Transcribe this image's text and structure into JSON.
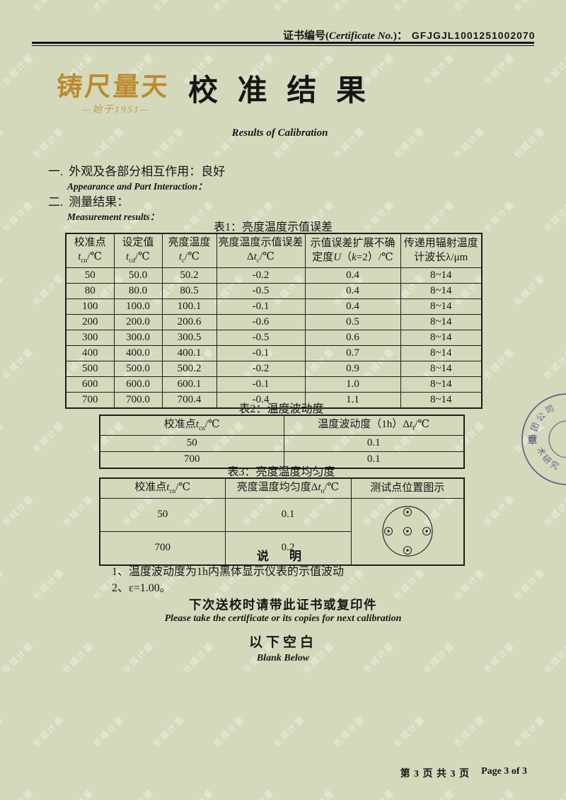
{
  "page": {
    "bg_color": "#d5d9bc",
    "watermark_text": "长城计量",
    "footer_zh": "第 3 页 共 3 页",
    "footer_en": "Page 3 of 3"
  },
  "header": {
    "cert_label_html": "证书编号(<i>Certificate No.</i>)：",
    "cert_number": "GFJGJL1001251002070",
    "logo_motto": "铸尺量天",
    "logo_since": "—始于1951—",
    "logo_color": "#bd8a2d",
    "title": "校 准 结 果",
    "subtitle": "Results of Calibration"
  },
  "sections": {
    "one_num": "一.",
    "one_zh": "外观及各部分相互作用：良好",
    "one_en": "Appearance and Part Interaction：",
    "two_num": "二.",
    "two_zh": "测量结果：",
    "two_en": "Measurement results："
  },
  "tables": {
    "table1": {
      "caption": "表1：亮度温度示值误差",
      "headers_html": [
        "校准点<br><i>t</i><sub>cn</sub>/℃",
        "设定值<br><i>t</i><sub>cd</sub>/℃",
        "亮度温度<br><i>t</i><sub>c</sub>/℃",
        "亮度温度示值误差<br>Δ<i>t</i><sub>c</sub>/℃",
        "示值误差扩展不确<br>定度<i>U</i>（<i>k</i>=2）/℃",
        "传递用辐射温度<br>计波长λ/μm"
      ],
      "rows": [
        [
          "50",
          "50.0",
          "50.2",
          "-0.2",
          "0.4",
          "8~14"
        ],
        [
          "80",
          "80.0",
          "80.5",
          "-0.5",
          "0.4",
          "8~14"
        ],
        [
          "100",
          "100.0",
          "100.1",
          "-0.1",
          "0.4",
          "8~14"
        ],
        [
          "200",
          "200.0",
          "200.6",
          "-0.6",
          "0.5",
          "8~14"
        ],
        [
          "300",
          "300.0",
          "300.5",
          "-0.5",
          "0.6",
          "8~14"
        ],
        [
          "400",
          "400.0",
          "400.1",
          "-0.1",
          "0.7",
          "8~14"
        ],
        [
          "500",
          "500.0",
          "500.2",
          "-0.2",
          "0.9",
          "8~14"
        ],
        [
          "600",
          "600.0",
          "600.1",
          "-0.1",
          "1.0",
          "8~14"
        ],
        [
          "700",
          "700.0",
          "700.4",
          "-0.4",
          "1.1",
          "8~14"
        ]
      ]
    },
    "table2": {
      "caption": "表2：温度波动度",
      "headers_html": [
        "校准点<i>t</i><sub>cn</sub>/℃",
        "温度波动度（1h）Δ<i>t</i><sub>f</sub>/℃"
      ],
      "rows": [
        [
          "50",
          "0.1"
        ],
        [
          "700",
          "0.1"
        ]
      ]
    },
    "table3": {
      "caption": "表3：亮度温度均匀度",
      "headers_html": [
        "校准点<i>t</i><sub>cn</sub>/℃",
        "亮度温度均匀度Δ<i>t</i><sub>u</sub>/℃",
        "测试点位置图示"
      ],
      "rows": [
        [
          "50",
          "0.1"
        ],
        [
          "700",
          "0.2"
        ]
      ],
      "diagram": "five-test-points-in-circle"
    }
  },
  "notes": {
    "title": "说　明",
    "item1": "1、温度波动度为1h内黑体显示仪表的示值波动",
    "item2": "2、ε=1.00。"
  },
  "reminder": {
    "zh": "下次送校时请带此证书或复印件",
    "en": "Please take the certificate or its copies for next calibration",
    "blank_zh": "以下空白",
    "blank_en": "Blank Below"
  },
  "stamp": {
    "arc_top": "集团公司",
    "center": "章",
    "arc_bottom": "术研究所",
    "color": "#4c4f82"
  }
}
